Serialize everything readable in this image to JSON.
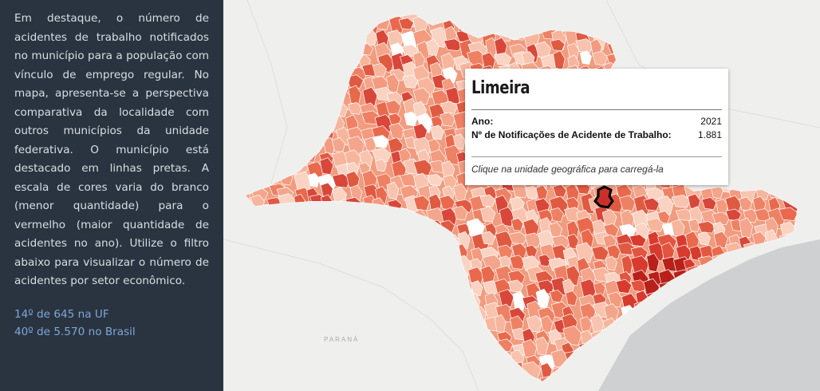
{
  "description": "Em destaque, o número de acidentes de trabalho notificados no município para a população com vínculo de emprego regular. No mapa, apresenta-se a perspectiva comparativa da localidade com outros municípios da unidade federativa. O município está destacado em linhas pretas. A escala de cores varia do branco (menor quantidade) para o vermelho (maior quantidade de acidentes no ano). Utilize o filtro abaixo para visualizar o número de acidentes por setor econômico.",
  "rank_uf": "14º de 645 na UF",
  "rank_br": "40º de 5.570 no Brasil",
  "map": {
    "neighbor_label": "PARANÁ",
    "colors": {
      "background": "#efefee",
      "ocean": "#cfd0d2",
      "scale_low": "#ffffff",
      "scale_high": "#c0211a",
      "highlight_border": "#000000"
    }
  },
  "tooltip": {
    "title": "Limeira",
    "year_label": "Ano:",
    "year_value": "2021",
    "count_label": "Nº de Notificações de Acidente de Trabalho:",
    "count_value": "1.881",
    "hint": "Clique na unidade geográfica para carregá-la"
  },
  "colors": {
    "panel_bg": "#2a3440",
    "panel_text": "#d9dee4",
    "rank_text": "#7ea6d8"
  }
}
